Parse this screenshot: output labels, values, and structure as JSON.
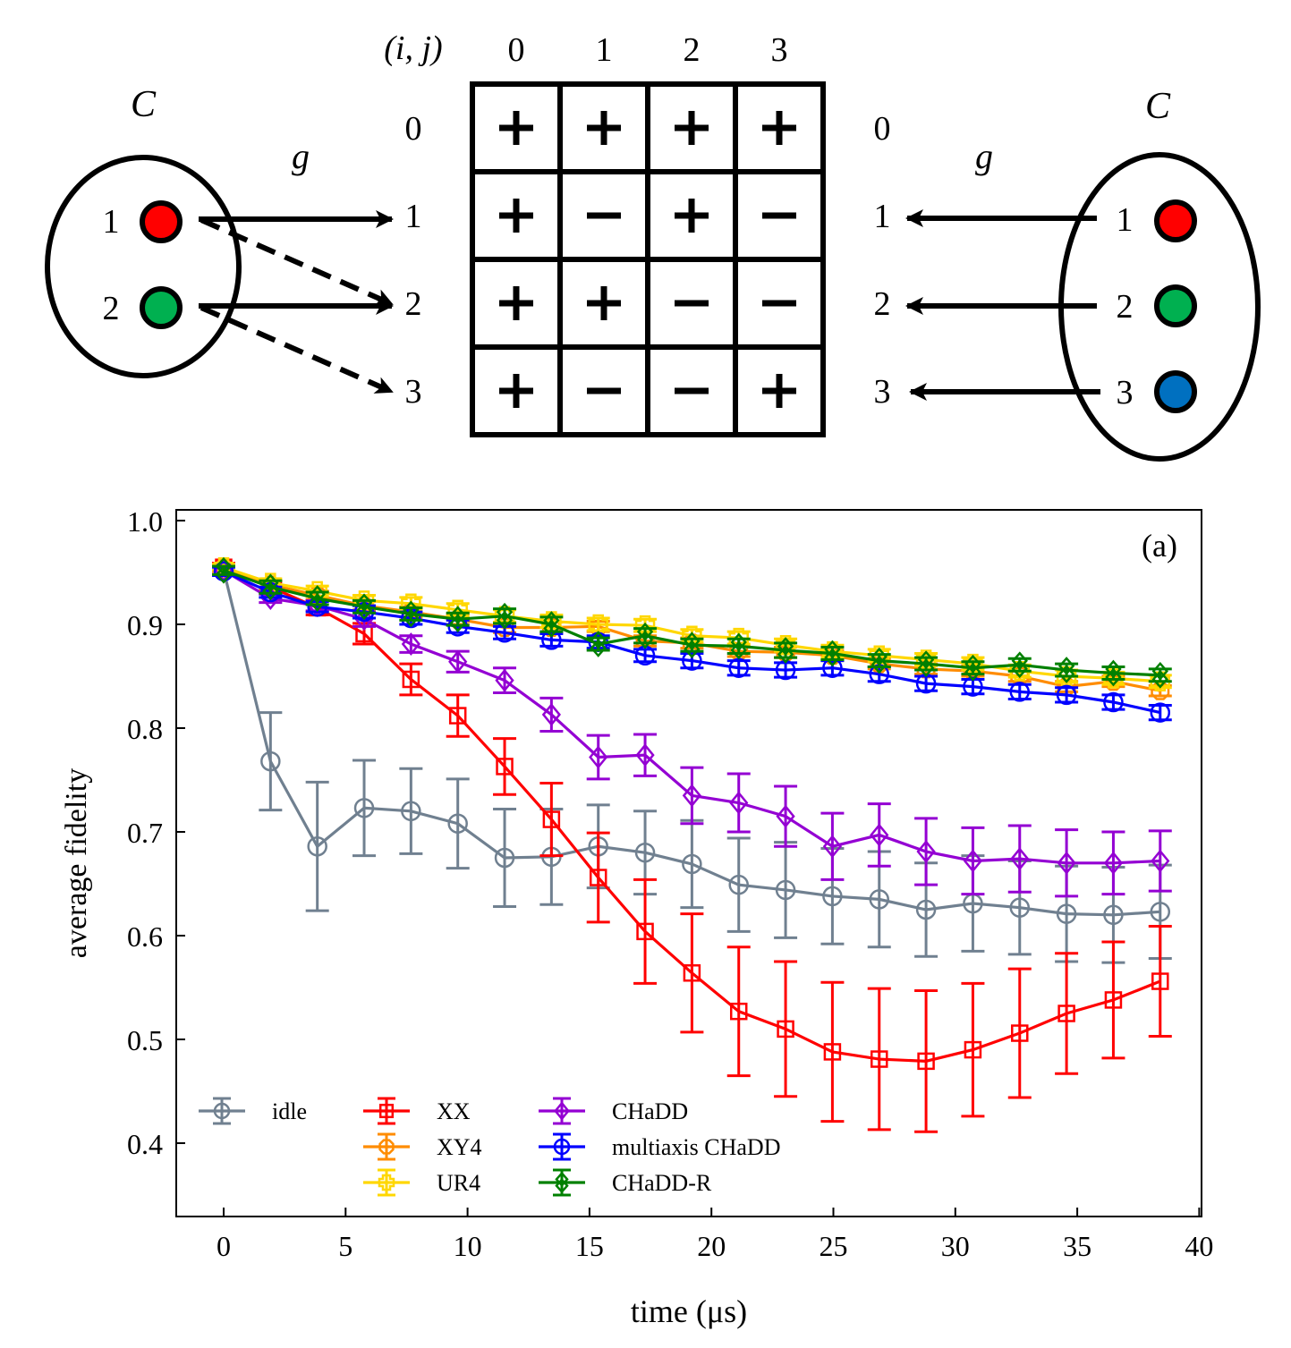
{
  "diagram": {
    "left_cluster": {
      "label": "C",
      "coupling_label": "g",
      "qubits": [
        {
          "label": "1",
          "color": "#ff0000"
        },
        {
          "label": "2",
          "color": "#00b050"
        }
      ]
    },
    "right_cluster": {
      "label": "C",
      "coupling_label": "g",
      "qubits": [
        {
          "label": "1",
          "color": "#ff0000"
        },
        {
          "label": "2",
          "color": "#00b050"
        },
        {
          "label": "3",
          "color": "#0070c0"
        }
      ]
    },
    "matrix": {
      "corner_label": "(i, j)",
      "col_labels": [
        "0",
        "1",
        "2",
        "3"
      ],
      "row_labels": [
        "0",
        "1",
        "2",
        "3"
      ],
      "right_row_labels": [
        "0",
        "1",
        "2",
        "3"
      ],
      "cells": [
        [
          "+",
          "+",
          "+",
          "+"
        ],
        [
          "+",
          "−",
          "+",
          "−"
        ],
        [
          "+",
          "+",
          "−",
          "−"
        ],
        [
          "+",
          "−",
          "−",
          "+"
        ]
      ]
    },
    "left_arrows": [
      {
        "from": "1",
        "to": "1",
        "style": "solid"
      },
      {
        "from": "1",
        "to": "2",
        "style": "dashed"
      },
      {
        "from": "2",
        "to": "2",
        "style": "solid"
      },
      {
        "from": "2",
        "to": "3",
        "style": "dashed"
      }
    ],
    "right_arrows": [
      {
        "from": "1",
        "to": "1",
        "style": "solid"
      },
      {
        "from": "2",
        "to": "2",
        "style": "solid"
      },
      {
        "from": "3",
        "to": "3",
        "style": "solid"
      }
    ]
  },
  "chart_data": {
    "type": "line",
    "panel_label": "(a)",
    "title": "",
    "xlabel": "time (μs)",
    "ylabel": "average fidelity",
    "xlim": [
      -2,
      40
    ],
    "ylim": [
      0.33,
      1.01
    ],
    "xticks": [
      "0",
      "5",
      "10",
      "15",
      "20",
      "25",
      "30",
      "35",
      "40"
    ],
    "yticks": [
      "0.4",
      "0.5",
      "0.6",
      "0.7",
      "0.8",
      "0.9",
      "1.0"
    ],
    "grid": false,
    "legend_position": "bottom-left",
    "x": [
      0,
      1.92,
      3.84,
      5.76,
      7.68,
      9.6,
      11.52,
      13.44,
      15.36,
      17.28,
      19.2,
      21.12,
      23.04,
      24.96,
      26.88,
      28.8,
      30.72,
      32.64,
      34.56,
      36.48,
      38.4
    ],
    "series": [
      {
        "name": "idle",
        "color": "#708090",
        "marker": "circle",
        "values": [
          0.952,
          0.768,
          0.686,
          0.723,
          0.72,
          0.708,
          0.675,
          0.676,
          0.686,
          0.68,
          0.669,
          0.649,
          0.644,
          0.638,
          0.635,
          0.625,
          0.631,
          0.627,
          0.621,
          0.62,
          0.623
        ],
        "errors": [
          0.004,
          0.047,
          0.062,
          0.046,
          0.041,
          0.043,
          0.047,
          0.046,
          0.04,
          0.04,
          0.042,
          0.045,
          0.046,
          0.046,
          0.046,
          0.045,
          0.046,
          0.045,
          0.046,
          0.046,
          0.045
        ]
      },
      {
        "name": "XX",
        "color": "#ff0000",
        "marker": "square",
        "values": [
          0.955,
          0.936,
          0.916,
          0.891,
          0.847,
          0.812,
          0.763,
          0.712,
          0.656,
          0.604,
          0.564,
          0.527,
          0.51,
          0.488,
          0.481,
          0.479,
          0.49,
          0.506,
          0.525,
          0.538,
          0.556
        ],
        "errors": [
          0.004,
          0.005,
          0.007,
          0.01,
          0.015,
          0.02,
          0.027,
          0.035,
          0.043,
          0.05,
          0.057,
          0.062,
          0.065,
          0.067,
          0.068,
          0.068,
          0.064,
          0.062,
          0.058,
          0.056,
          0.053
        ]
      },
      {
        "name": "XY4",
        "color": "#ff8c00",
        "marker": "octagon",
        "values": [
          0.954,
          0.938,
          0.928,
          0.918,
          0.912,
          0.905,
          0.897,
          0.897,
          0.898,
          0.884,
          0.882,
          0.874,
          0.873,
          0.87,
          0.862,
          0.857,
          0.855,
          0.85,
          0.84,
          0.845,
          0.836
        ],
        "errors": [
          0.003,
          0.004,
          0.004,
          0.004,
          0.005,
          0.005,
          0.005,
          0.005,
          0.005,
          0.005,
          0.005,
          0.005,
          0.005,
          0.005,
          0.005,
          0.005,
          0.005,
          0.005,
          0.005,
          0.005,
          0.005
        ]
      },
      {
        "name": "UR4",
        "color": "#ffd700",
        "marker": "plus-square",
        "values": [
          0.955,
          0.94,
          0.932,
          0.923,
          0.92,
          0.914,
          0.908,
          0.903,
          0.9,
          0.899,
          0.889,
          0.887,
          0.88,
          0.874,
          0.87,
          0.866,
          0.862,
          0.855,
          0.85,
          0.848,
          0.845
        ],
        "errors": [
          0.003,
          0.004,
          0.005,
          0.005,
          0.006,
          0.006,
          0.006,
          0.006,
          0.006,
          0.006,
          0.006,
          0.006,
          0.006,
          0.006,
          0.006,
          0.006,
          0.006,
          0.006,
          0.006,
          0.006,
          0.006
        ]
      },
      {
        "name": "CHaDD",
        "color": "#9400d3",
        "marker": "diamond",
        "values": [
          0.952,
          0.925,
          0.918,
          0.905,
          0.881,
          0.864,
          0.846,
          0.813,
          0.772,
          0.774,
          0.735,
          0.728,
          0.715,
          0.686,
          0.697,
          0.681,
          0.672,
          0.674,
          0.67,
          0.67,
          0.672
        ],
        "errors": [
          0.004,
          0.004,
          0.005,
          0.007,
          0.008,
          0.01,
          0.012,
          0.016,
          0.021,
          0.02,
          0.027,
          0.028,
          0.029,
          0.032,
          0.03,
          0.032,
          0.032,
          0.032,
          0.032,
          0.03,
          0.029
        ]
      },
      {
        "name": "multiaxis CHaDD",
        "color": "#0000ff",
        "marker": "circle-plus",
        "values": [
          0.951,
          0.931,
          0.917,
          0.912,
          0.906,
          0.898,
          0.892,
          0.885,
          0.883,
          0.87,
          0.865,
          0.858,
          0.856,
          0.858,
          0.852,
          0.843,
          0.84,
          0.835,
          0.832,
          0.825,
          0.815
        ],
        "errors": [
          0.004,
          0.005,
          0.005,
          0.006,
          0.006,
          0.006,
          0.006,
          0.006,
          0.006,
          0.006,
          0.007,
          0.007,
          0.007,
          0.007,
          0.007,
          0.007,
          0.007,
          0.007,
          0.007,
          0.007,
          0.007
        ]
      },
      {
        "name": "CHaDD-R",
        "color": "#008000",
        "marker": "double-diamond",
        "values": [
          0.952,
          0.936,
          0.925,
          0.917,
          0.91,
          0.905,
          0.908,
          0.9,
          0.881,
          0.889,
          0.88,
          0.879,
          0.875,
          0.872,
          0.865,
          0.862,
          0.858,
          0.861,
          0.856,
          0.853,
          0.851
        ],
        "errors": [
          0.004,
          0.006,
          0.006,
          0.006,
          0.006,
          0.006,
          0.007,
          0.007,
          0.006,
          0.007,
          0.006,
          0.007,
          0.007,
          0.006,
          0.006,
          0.006,
          0.006,
          0.006,
          0.006,
          0.006,
          0.006
        ]
      }
    ]
  }
}
